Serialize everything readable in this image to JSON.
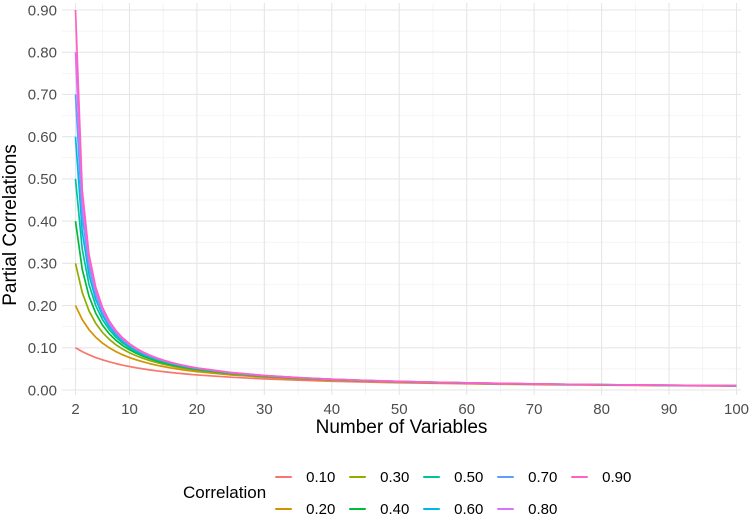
{
  "chart_data": {
    "type": "line",
    "title": "",
    "xlabel": "Number of Variables",
    "ylabel": "Partial Correlations",
    "legend_title": "Correlation",
    "legend_position": "bottom",
    "xlim": [
      2,
      100
    ],
    "ylim": [
      0.0,
      0.9
    ],
    "grid": {
      "on": true,
      "major_color": "#E6E6E6",
      "minor_color": "#F0F0F0"
    },
    "tick_label_color": "#4D4D4D",
    "x_ticks": [
      {
        "value": 2,
        "label": "2"
      },
      {
        "value": 10,
        "label": "10"
      },
      {
        "value": 20,
        "label": "20"
      },
      {
        "value": 30,
        "label": "30"
      },
      {
        "value": 40,
        "label": "40"
      },
      {
        "value": 50,
        "label": "50"
      },
      {
        "value": 60,
        "label": "60"
      },
      {
        "value": 70,
        "label": "70"
      },
      {
        "value": 80,
        "label": "80"
      },
      {
        "value": 90,
        "label": "90"
      },
      {
        "value": 100,
        "label": "100"
      }
    ],
    "y_ticks": [
      {
        "value": 0.0,
        "label": "0.00"
      },
      {
        "value": 0.1,
        "label": "0.10"
      },
      {
        "value": 0.2,
        "label": "0.20"
      },
      {
        "value": 0.3,
        "label": "0.30"
      },
      {
        "value": 0.4,
        "label": "0.40"
      },
      {
        "value": 0.5,
        "label": "0.50"
      },
      {
        "value": 0.6,
        "label": "0.60"
      },
      {
        "value": 0.7,
        "label": "0.70"
      },
      {
        "value": 0.8,
        "label": "0.80"
      },
      {
        "value": 0.9,
        "label": "0.90"
      }
    ],
    "x": [
      2,
      3,
      4,
      5,
      6,
      7,
      8,
      9,
      10,
      11,
      12,
      13,
      14,
      15,
      16,
      17,
      18,
      19,
      20,
      25,
      30,
      35,
      40,
      45,
      50,
      55,
      60,
      65,
      70,
      75,
      80,
      85,
      90,
      95,
      100
    ],
    "series": [
      {
        "name": "0.10",
        "color": "#F8766D",
        "values": [
          0.1,
          0.0909,
          0.0833,
          0.0769,
          0.0714,
          0.0667,
          0.0625,
          0.0588,
          0.0556,
          0.0526,
          0.05,
          0.0476,
          0.0455,
          0.0435,
          0.0417,
          0.04,
          0.0385,
          0.037,
          0.0357,
          0.0303,
          0.0263,
          0.0233,
          0.0208,
          0.0189,
          0.0172,
          0.0159,
          0.0147,
          0.0137,
          0.0128,
          0.012,
          0.0114,
          0.0108,
          0.0102,
          0.0097,
          0.0093
        ]
      },
      {
        "name": "0.20",
        "color": "#D39200",
        "values": [
          0.2,
          0.1667,
          0.1429,
          0.125,
          0.1111,
          0.1,
          0.0909,
          0.0833,
          0.0769,
          0.0714,
          0.0667,
          0.0625,
          0.0588,
          0.0556,
          0.0526,
          0.05,
          0.0476,
          0.0455,
          0.0435,
          0.0357,
          0.0303,
          0.0263,
          0.0233,
          0.0208,
          0.0189,
          0.0172,
          0.0159,
          0.0147,
          0.0137,
          0.0128,
          0.012,
          0.0114,
          0.0108,
          0.0102,
          0.0097
        ]
      },
      {
        "name": "0.30",
        "color": "#93AA00",
        "values": [
          0.3,
          0.2308,
          0.1875,
          0.1579,
          0.1364,
          0.12,
          0.1071,
          0.0968,
          0.0882,
          0.0811,
          0.075,
          0.0698,
          0.0652,
          0.0612,
          0.0577,
          0.0545,
          0.0517,
          0.0492,
          0.0469,
          0.038,
          0.0319,
          0.0275,
          0.0242,
          0.0216,
          0.0195,
          0.0178,
          0.0163,
          0.0151,
          0.014,
          0.0131,
          0.0123,
          0.0116,
          0.0109,
          0.0104,
          0.0099
        ]
      },
      {
        "name": "0.40",
        "color": "#00BA38",
        "values": [
          0.4,
          0.2857,
          0.2222,
          0.1818,
          0.1538,
          0.1333,
          0.1176,
          0.1053,
          0.0952,
          0.087,
          0.08,
          0.0741,
          0.069,
          0.0645,
          0.0606,
          0.0571,
          0.0541,
          0.0513,
          0.0488,
          0.0392,
          0.0328,
          0.0282,
          0.0247,
          0.022,
          0.0198,
          0.018,
          0.0165,
          0.0153,
          0.0142,
          0.0132,
          0.0124,
          0.0117,
          0.011,
          0.0105,
          0.01
        ]
      },
      {
        "name": "0.50",
        "color": "#00C19F",
        "values": [
          0.5,
          0.3333,
          0.25,
          0.2,
          0.1667,
          0.1429,
          0.125,
          0.1111,
          0.1,
          0.0909,
          0.0833,
          0.0769,
          0.0714,
          0.0667,
          0.0625,
          0.0588,
          0.0556,
          0.0526,
          0.05,
          0.04,
          0.0333,
          0.0286,
          0.025,
          0.0222,
          0.02,
          0.0182,
          0.0167,
          0.0154,
          0.0143,
          0.0133,
          0.0125,
          0.0118,
          0.0111,
          0.0105,
          0.01
        ]
      },
      {
        "name": "0.60",
        "color": "#00B9E3",
        "values": [
          0.6,
          0.375,
          0.2727,
          0.2143,
          0.1765,
          0.15,
          0.1304,
          0.1154,
          0.1034,
          0.0938,
          0.0857,
          0.0789,
          0.0732,
          0.0682,
          0.0638,
          0.06,
          0.0566,
          0.0536,
          0.0508,
          0.0405,
          0.0337,
          0.0288,
          0.0252,
          0.0224,
          0.0201,
          0.0183,
          0.0168,
          0.0155,
          0.0144,
          0.0134,
          0.0126,
          0.0118,
          0.0112,
          0.0106,
          0.01
        ]
      },
      {
        "name": "0.70",
        "color": "#619CFF",
        "values": [
          0.7,
          0.4118,
          0.2917,
          0.2258,
          0.1842,
          0.1556,
          0.1346,
          0.1186,
          0.1061,
          0.0959,
          0.0875,
          0.0805,
          0.0745,
          0.0693,
          0.0648,
          0.0609,
          0.0574,
          0.0543,
          0.0515,
          0.0409,
          0.034,
          0.029,
          0.0254,
          0.0225,
          0.0202,
          0.0184,
          0.0168,
          0.0155,
          0.0144,
          0.0134,
          0.0126,
          0.0118,
          0.0112,
          0.0106,
          0.0101
        ]
      },
      {
        "name": "0.80",
        "color": "#DB72FB",
        "values": [
          0.8,
          0.4444,
          0.3077,
          0.2353,
          0.1905,
          0.16,
          0.1379,
          0.1212,
          0.1081,
          0.0976,
          0.0889,
          0.0816,
          0.0755,
          0.0702,
          0.0656,
          0.0615,
          0.058,
          0.0548,
          0.0519,
          0.0412,
          0.0342,
          0.0292,
          0.0255,
          0.0226,
          0.0203,
          0.0184,
          0.0169,
          0.0156,
          0.0144,
          0.0135,
          0.0126,
          0.0119,
          0.0112,
          0.0106,
          0.0101
        ]
      },
      {
        "name": "0.90",
        "color": "#FF61C3",
        "values": [
          0.9,
          0.4737,
          0.3214,
          0.2432,
          0.1957,
          0.1636,
          0.1406,
          0.1233,
          0.1098,
          0.0989,
          0.09,
          0.0826,
          0.0763,
          0.0709,
          0.0662,
          0.0621,
          0.0584,
          0.0552,
          0.0523,
          0.0415,
          0.0344,
          0.0293,
          0.0256,
          0.0227,
          0.0204,
          0.0185,
          0.0169,
          0.0156,
          0.0145,
          0.0135,
          0.0126,
          0.0119,
          0.0112,
          0.0106,
          0.0101
        ]
      }
    ]
  }
}
